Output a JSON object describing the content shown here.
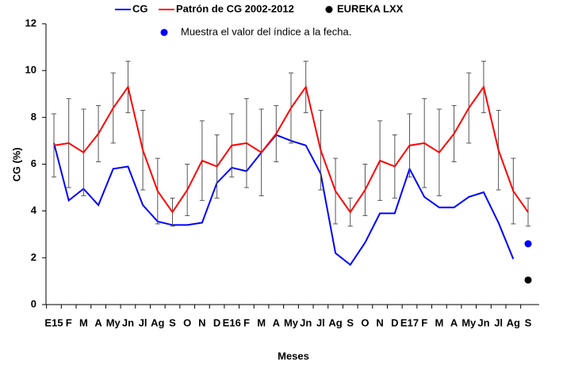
{
  "chart_data": {
    "type": "line",
    "x_label": "Meses",
    "y_label": "CG (%)",
    "categories": [
      "E15",
      "F",
      "M",
      "A",
      "My",
      "Jn",
      "Jl",
      "Ag",
      "S",
      "O",
      "N",
      "D",
      "E16",
      "F",
      "M",
      "A",
      "My",
      "Jn",
      "Jl",
      "Ag",
      "S",
      "O",
      "N",
      "D",
      "E17",
      "F",
      "M",
      "A",
      "My",
      "Jn",
      "Jl",
      "Ag",
      "S"
    ],
    "ylim": [
      0,
      12
    ],
    "yticks": [
      0,
      2,
      4,
      6,
      8,
      10,
      12
    ],
    "series": [
      {
        "name": "CG",
        "color": "#0000ff",
        "kind": "line",
        "values": [
          6.9,
          4.45,
          4.95,
          4.25,
          5.8,
          5.9,
          4.25,
          3.55,
          3.4,
          3.4,
          3.5,
          5.2,
          5.85,
          5.7,
          6.5,
          7.25,
          7.0,
          6.8,
          5.6,
          2.2,
          1.7,
          2.65,
          3.9,
          3.9,
          5.8,
          4.6,
          4.15,
          4.15,
          4.6,
          4.8,
          3.5,
          1.95,
          null
        ]
      },
      {
        "name": "Patrón  de CG 2002-2012",
        "color": "#ff0000",
        "kind": "line",
        "values": [
          6.8,
          6.9,
          6.5,
          7.3,
          8.4,
          9.3,
          6.6,
          4.85,
          3.95,
          4.9,
          6.15,
          5.9,
          6.8,
          6.9,
          6.5,
          7.3,
          8.4,
          9.3,
          6.6,
          4.85,
          3.95,
          4.9,
          6.15,
          5.9,
          6.8,
          6.9,
          6.5,
          7.3,
          8.4,
          9.3,
          6.6,
          4.85,
          3.95
        ],
        "errors": [
          1.35,
          1.9,
          1.85,
          1.2,
          1.5,
          1.1,
          1.7,
          1.4,
          0.6,
          1.1,
          1.7,
          1.35,
          1.35,
          1.9,
          1.85,
          1.2,
          1.5,
          1.1,
          1.7,
          1.4,
          0.6,
          1.1,
          1.7,
          1.35,
          1.35,
          1.9,
          1.85,
          1.2,
          1.5,
          1.1,
          1.7,
          1.4,
          0.6
        ]
      },
      {
        "name": "EUREKA LXX",
        "color": "#000000",
        "kind": "dot",
        "values": [
          null,
          null,
          null,
          null,
          null,
          null,
          null,
          null,
          null,
          null,
          null,
          null,
          null,
          null,
          null,
          null,
          null,
          null,
          null,
          null,
          null,
          null,
          null,
          null,
          null,
          null,
          null,
          null,
          null,
          null,
          null,
          null,
          1.05
        ]
      },
      {
        "name": "Muestra el valor del índice a la fecha.",
        "color": "#0000ff",
        "kind": "dot",
        "values": [
          null,
          null,
          null,
          null,
          null,
          null,
          null,
          null,
          null,
          null,
          null,
          null,
          null,
          null,
          null,
          null,
          null,
          null,
          null,
          null,
          null,
          null,
          null,
          null,
          null,
          null,
          null,
          null,
          null,
          null,
          null,
          null,
          2.6
        ]
      }
    ]
  }
}
